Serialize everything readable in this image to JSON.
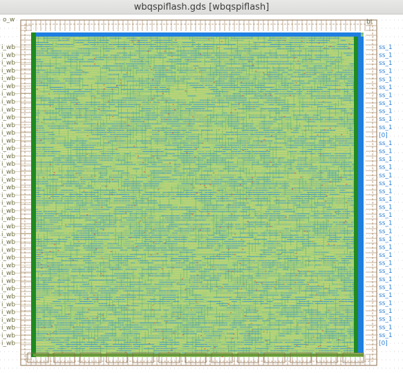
{
  "window": {
    "title": "wbqspiflash.gds [wbqspiflash]"
  },
  "layout": {
    "cell_name": "wbqspiflash",
    "top_pin_labels": [
      "o_w",
      "bt"
    ],
    "left_pin_labels": [
      "i_wb",
      "i_wb",
      "i_wb",
      "i_wb",
      "i_wb",
      "i_wb",
      "i_wb",
      "i_wb",
      "i_wb",
      "i_wb",
      "i_wb",
      "i_wb",
      "i_wb",
      "i_wb",
      "i_wb",
      "i_wb",
      "i_wb",
      "i_wb",
      "i_wb",
      "i_wb",
      "i_wb",
      "i_wb",
      "i_wb",
      "i_wb",
      "i_wb",
      "i_wb",
      "i_wb",
      "i_wb",
      "i_wb",
      "i_wb",
      "i_wb",
      "i_wb",
      "i_wb",
      "i_wb",
      "i_wb",
      "i_wb",
      "i_wb",
      "i_wb",
      "i_wb"
    ],
    "right_pin_labels": [
      "ss_1",
      "ss_1",
      "ss_1",
      "ss_1",
      "ss_1",
      "ss_1",
      "ss_1",
      "ss_1",
      "ss_1",
      "ss_1",
      "ss_1",
      "[0]",
      "ss_1",
      "ss_1",
      "ss_1",
      "ss_1",
      "ss_1",
      "ss_1",
      "ss_1",
      "ss_1",
      "ss_1",
      "ss_1",
      "ss_1",
      "ss_1",
      "ss_1",
      "ss_1",
      "ss_1",
      "ss_1",
      "ss_1",
      "ss_1",
      "ss_1",
      "ss_1",
      "ss_1",
      "ss_1",
      "ss_1",
      "ss_1",
      "ss_1",
      "[0]"
    ],
    "colors": {
      "core_fill": "#a6d27a",
      "grid_dot": "#a8a8a8",
      "metal_blue": "#1e7fe0",
      "metal_green": "#1f8a1f",
      "boundary": "#8a6a4a",
      "pin_label": "#6a6a3a",
      "pin_label_right": "#2a7fd4"
    }
  }
}
